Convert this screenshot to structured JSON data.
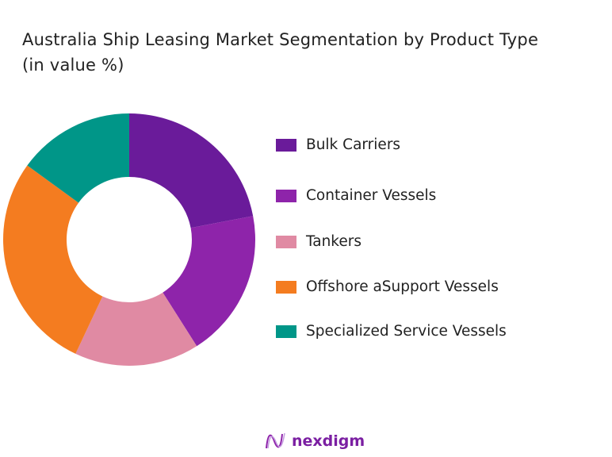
{
  "chart_data": {
    "type": "pie",
    "donut": true,
    "title": "Australia Ship Leasing Market Segmentation by Product Type (in value %)",
    "title_lines": [
      "Australia Ship Leasing Market Segmentation by Product Type",
      "(in value %)"
    ],
    "legend_position": "right",
    "categories": [
      "Bulk Carriers",
      "Container Vessels",
      "Tankers",
      "Offshore aSupport Vessels",
      "Specialized Service Vessels"
    ],
    "values": [
      22,
      19,
      16,
      28,
      15
    ],
    "colors": [
      "#6a1b9a",
      "#8e24aa",
      "#e08aa3",
      "#f47c20",
      "#009688"
    ]
  },
  "logo": {
    "text": "nexdigm"
  }
}
